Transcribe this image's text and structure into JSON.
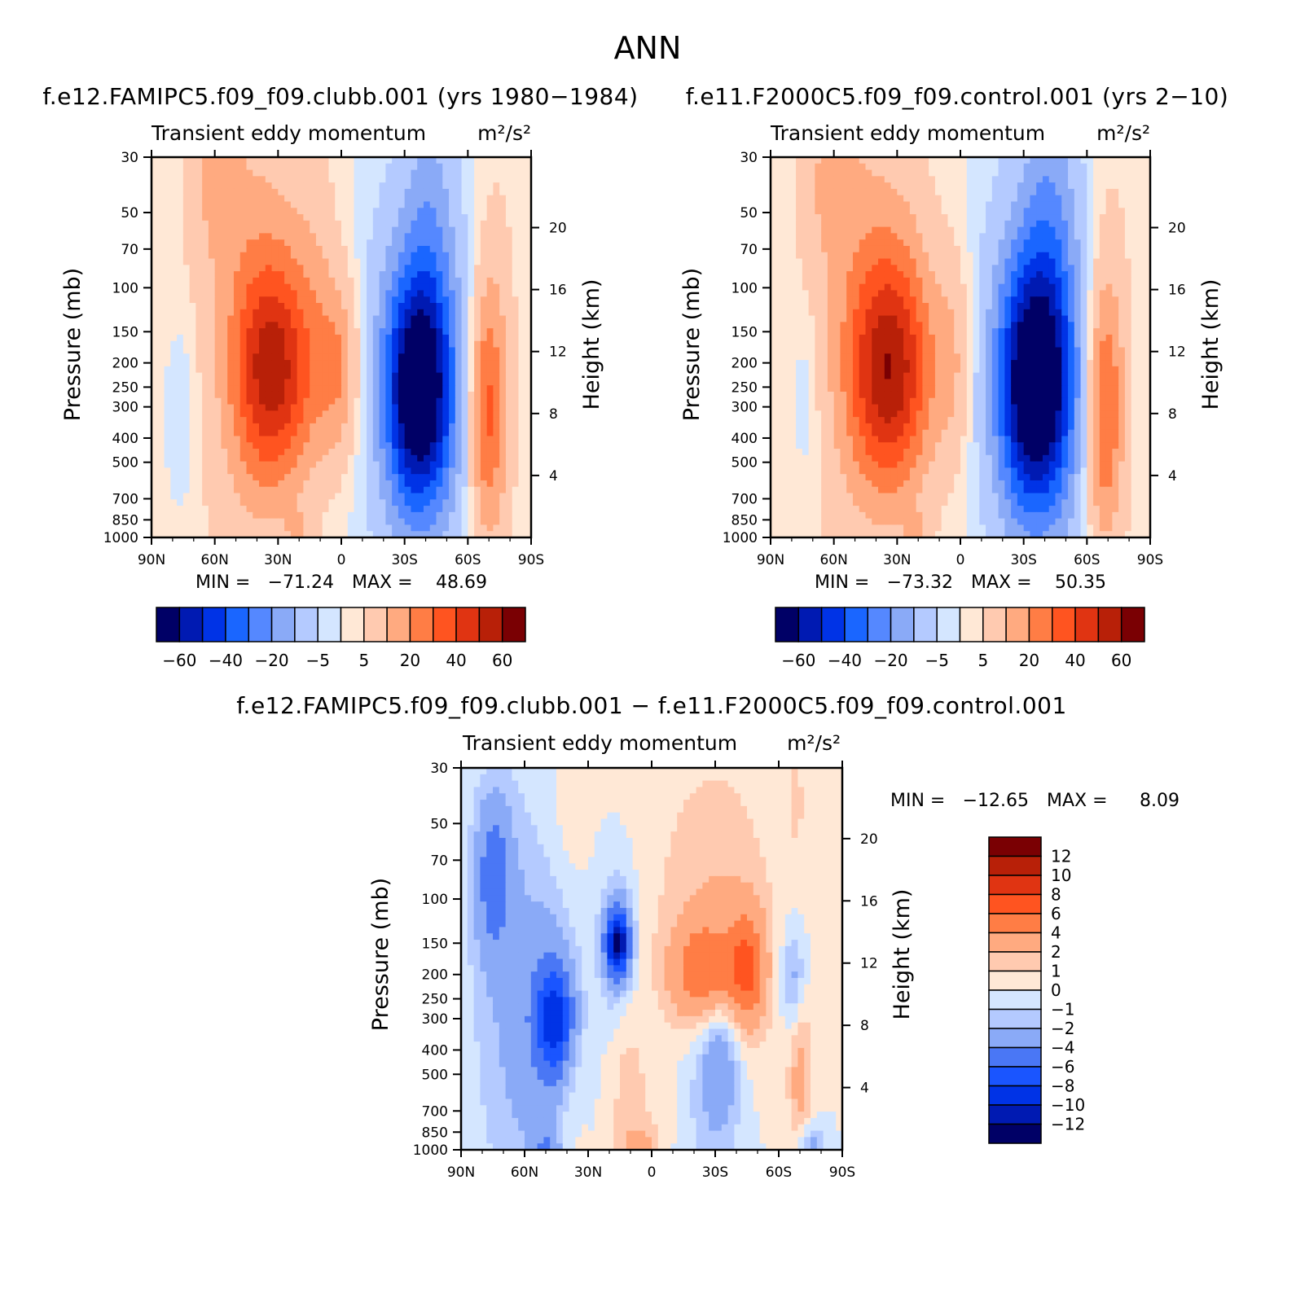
{
  "figure_title": "ANN",
  "chart_data": [
    {
      "type": "heatmap",
      "title": "f.e12.FAMIPC5.f09_f09.clubb.001 (yrs 1980−1984)",
      "subtitle": "Transient eddy momentum",
      "units": "m²/s²",
      "ylabel": "Pressure (mb)",
      "ylabel_right": "Height (km)",
      "x_ticks": [
        "90N",
        "60N",
        "30N",
        "0",
        "30S",
        "60S",
        "90S"
      ],
      "y_ticks": [
        "30",
        "50",
        "70",
        "100",
        "150",
        "200",
        "250",
        "300",
        "400",
        "500",
        "700",
        "850",
        "1000"
      ],
      "y_right_ticks": [
        "20",
        "16",
        "12",
        "8",
        "4"
      ],
      "ylim": [
        1000,
        30
      ],
      "y_scale": "log",
      "min_label": "MIN =",
      "min_value": "−71.24",
      "max_label": "MAX =",
      "max_value": "48.69",
      "colorbar": [
        "−60",
        "−40",
        "−20",
        "−5",
        "5",
        "20",
        "40",
        "60"
      ],
      "blobs": [
        {
          "lat": 32,
          "p": 220,
          "value": 45,
          "wlat": 13,
          "wlogp": 0.3
        },
        {
          "lat": 36,
          "p": 120,
          "value": 16,
          "wlat": 15,
          "wlogp": 0.55
        },
        {
          "lat": 60,
          "p": 35,
          "value": 14,
          "wlat": 10,
          "wlogp": 0.28
        },
        {
          "lat": 1,
          "p": 210,
          "value": 22,
          "wlat": 7,
          "wlogp": 0.25
        },
        {
          "lat": 12,
          "p": 110,
          "value": 8,
          "wlat": 8,
          "wlogp": 0.5
        },
        {
          "lat": 50,
          "p": 300,
          "value": 6,
          "wlat": 20,
          "wlogp": 0.7
        },
        {
          "lat": -37,
          "p": 260,
          "value": -70,
          "wlat": 11,
          "wlogp": 0.32
        },
        {
          "lat": -37,
          "p": 220,
          "value": -20,
          "wlat": 16,
          "wlogp": 0.55
        },
        {
          "lat": -42,
          "p": 45,
          "value": -12,
          "wlat": 8,
          "wlogp": 0.35
        },
        {
          "lat": -69,
          "p": 310,
          "value": 33,
          "wlat": 6,
          "wlogp": 0.35
        },
        {
          "lat": -74,
          "p": 200,
          "value": 8,
          "wlat": 8,
          "wlogp": 0.7
        },
        {
          "lat": 75,
          "p": 320,
          "value": -7,
          "wlat": 5,
          "wlogp": 0.25
        },
        {
          "lat": 20,
          "p": 950,
          "value": 9,
          "wlat": 5,
          "wlogp": 0.06
        }
      ]
    },
    {
      "type": "heatmap",
      "title": "f.e11.F2000C5.f09_f09.control.001 (yrs 2−10)",
      "subtitle": "Transient eddy momentum",
      "units": "m²/s²",
      "ylabel": "Pressure (mb)",
      "ylabel_right": "Height (km)",
      "x_ticks": [
        "90N",
        "60N",
        "30N",
        "0",
        "30S",
        "60S",
        "90S"
      ],
      "y_ticks": [
        "30",
        "50",
        "70",
        "100",
        "150",
        "200",
        "250",
        "300",
        "400",
        "500",
        "700",
        "850",
        "1000"
      ],
      "y_right_ticks": [
        "20",
        "16",
        "12",
        "8",
        "4"
      ],
      "ylim": [
        1000,
        30
      ],
      "y_scale": "log",
      "min_label": "MIN =",
      "min_value": "−73.32",
      "max_label": "MAX =",
      "max_value": "50.35",
      "colorbar": [
        "−60",
        "−40",
        "−20",
        "−5",
        "5",
        "20",
        "40",
        "60"
      ],
      "blobs": [
        {
          "lat": 33,
          "p": 220,
          "value": 48,
          "wlat": 14,
          "wlogp": 0.32
        },
        {
          "lat": 36,
          "p": 120,
          "value": 16,
          "wlat": 16,
          "wlogp": 0.55
        },
        {
          "lat": 62,
          "p": 35,
          "value": 14,
          "wlat": 10,
          "wlogp": 0.28
        },
        {
          "lat": 3,
          "p": 200,
          "value": 12,
          "wlat": 6,
          "wlogp": 0.3
        },
        {
          "lat": 55,
          "p": 300,
          "value": 6,
          "wlat": 20,
          "wlogp": 0.7
        },
        {
          "lat": -36,
          "p": 250,
          "value": -72,
          "wlat": 12,
          "wlogp": 0.34
        },
        {
          "lat": -36,
          "p": 200,
          "value": -22,
          "wlat": 16,
          "wlogp": 0.55
        },
        {
          "lat": -43,
          "p": 45,
          "value": -14,
          "wlat": 9,
          "wlogp": 0.35
        },
        {
          "lat": -68,
          "p": 310,
          "value": 33,
          "wlat": 6,
          "wlogp": 0.35
        },
        {
          "lat": -72,
          "p": 200,
          "value": 8,
          "wlat": 8,
          "wlogp": 0.7
        },
        {
          "lat": 73,
          "p": 280,
          "value": -7,
          "wlat": 5,
          "wlogp": 0.25
        },
        {
          "lat": 20,
          "p": 950,
          "value": 9,
          "wlat": 5,
          "wlogp": 0.06
        }
      ]
    },
    {
      "type": "heatmap",
      "title": "f.e12.FAMIPC5.f09_f09.clubb.001 − f.e11.F2000C5.f09_f09.control.001",
      "subtitle": "Transient eddy momentum",
      "units": "m²/s²",
      "ylabel": "Pressure (mb)",
      "ylabel_right": "Height (km)",
      "x_ticks": [
        "90N",
        "60N",
        "30N",
        "0",
        "30S",
        "60S",
        "90S"
      ],
      "y_ticks": [
        "30",
        "50",
        "70",
        "100",
        "150",
        "200",
        "250",
        "300",
        "400",
        "500",
        "700",
        "850",
        "1000"
      ],
      "y_right_ticks": [
        "20",
        "16",
        "12",
        "8",
        "4"
      ],
      "ylim": [
        1000,
        30
      ],
      "y_scale": "log",
      "min_label": "MIN =",
      "min_value": "−12.65",
      "max_label": "MAX =",
      "max_value": "8.09",
      "colorbar": [
        "12",
        "10",
        "8",
        "6",
        "4",
        "2",
        "1",
        "0",
        "−1",
        "−2",
        "−4",
        "−6",
        "−8",
        "−10",
        "−12"
      ],
      "blobs": [
        {
          "lat": 75,
          "p": 80,
          "value": -4.5,
          "wlat": 6,
          "wlogp": 0.22
        },
        {
          "lat": 65,
          "p": 250,
          "value": -2.2,
          "wlat": 14,
          "wlogp": 0.6
        },
        {
          "lat": 45,
          "p": 300,
          "value": -6.5,
          "wlat": 6,
          "wlogp": 0.15
        },
        {
          "lat": 47,
          "p": 330,
          "value": -3,
          "wlat": 10,
          "wlogp": 0.32
        },
        {
          "lat": 16,
          "p": 150,
          "value": -10,
          "wlat": 4,
          "wlogp": 0.09
        },
        {
          "lat": 16,
          "p": 150,
          "value": -3,
          "wlat": 6,
          "wlogp": 0.22
        },
        {
          "lat": -25,
          "p": 200,
          "value": 5,
          "wlat": 11,
          "wlogp": 0.14
        },
        {
          "lat": -45,
          "p": 190,
          "value": 5,
          "wlat": 6,
          "wlogp": 0.16
        },
        {
          "lat": -30,
          "p": 180,
          "value": 2,
          "wlat": 18,
          "wlogp": 0.38
        },
        {
          "lat": -28,
          "p": 60,
          "value": 0.8,
          "wlat": 25,
          "wlogp": 0.5
        },
        {
          "lat": -32,
          "p": 420,
          "value": -3.5,
          "wlat": 7,
          "wlogp": 0.22
        },
        {
          "lat": -25,
          "p": 500,
          "value": -1.5,
          "wlat": 14,
          "wlogp": 0.4
        },
        {
          "lat": -67,
          "p": 210,
          "value": -3,
          "wlat": 4,
          "wlogp": 0.15
        },
        {
          "lat": -70,
          "p": 500,
          "value": 2.5,
          "wlat": 4,
          "wlogp": 0.25
        },
        {
          "lat": 38,
          "p": 500,
          "value": 1.2,
          "wlat": 6,
          "wlogp": 0.3
        },
        {
          "lat": 38,
          "p": 40,
          "value": 0.8,
          "wlat": 6,
          "wlogp": 0.2
        },
        {
          "lat": 12,
          "p": 500,
          "value": 1.2,
          "wlat": 6,
          "wlogp": 0.35
        },
        {
          "lat": -68,
          "p": 40,
          "value": 1.2,
          "wlat": 3,
          "wlogp": 0.15
        },
        {
          "lat": 50,
          "p": 1000,
          "value": -3,
          "wlat": 5,
          "wlogp": 0.05
        },
        {
          "lat": -75,
          "p": 960,
          "value": -3,
          "wlat": 4,
          "wlogp": 0.06
        },
        {
          "lat": 5,
          "p": 950,
          "value": 1.5,
          "wlat": 6,
          "wlogp": 0.05
        },
        {
          "lat": 0,
          "p": 800,
          "value": 0.8,
          "wlat": 10,
          "wlogp": 0.2
        }
      ]
    }
  ],
  "colors": {
    "scale_8": [
      "#000066",
      "#001ab2",
      "#0033e6",
      "#1a66ff",
      "#5588ff",
      "#8aaaf7",
      "#b4caff",
      "#d4e6ff",
      "#ffe8d6",
      "#ffcab0",
      "#ffaa80",
      "#ff7d45",
      "#ff5420",
      "#e03412",
      "#b82008",
      "#7a0003"
    ],
    "scale_diff": [
      "#000066",
      "#001ab2",
      "#0033e6",
      "#1a55ff",
      "#4a77f5",
      "#8aaaf7",
      "#b4caff",
      "#d4e6ff",
      "#ffe8d6",
      "#ffcab0",
      "#ffaa80",
      "#ff7d45",
      "#ff5420",
      "#e03412",
      "#b82008",
      "#7a0003"
    ]
  }
}
